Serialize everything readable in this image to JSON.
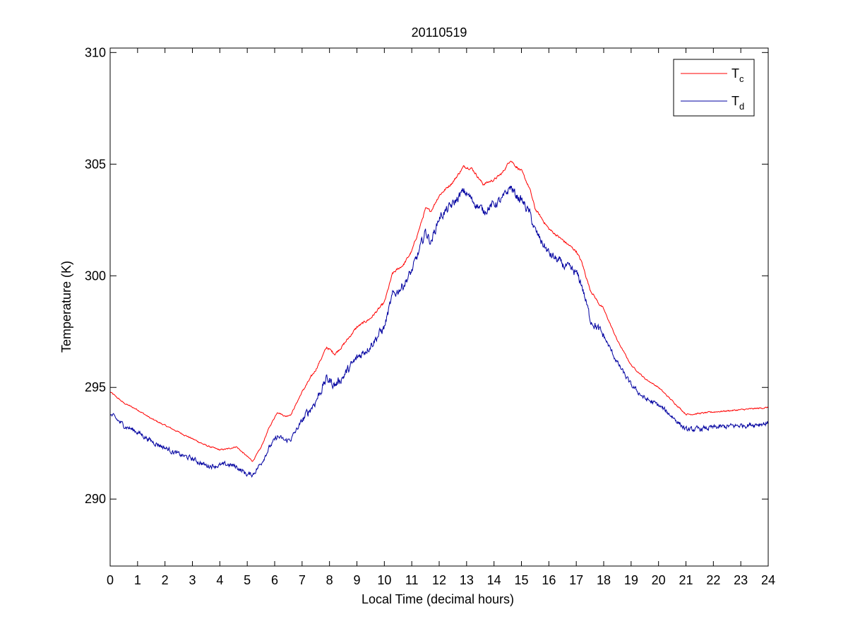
{
  "chart_data": {
    "type": "line",
    "title": "20110519",
    "xlabel": "Local Time (decimal hours)",
    "ylabel": "Temperature (K)",
    "xlim": [
      0,
      24
    ],
    "ylim": [
      287,
      310.2
    ],
    "xticks": [
      "0",
      "1",
      "2",
      "3",
      "4",
      "5",
      "6",
      "7",
      "8",
      "9",
      "10",
      "11",
      "12",
      "13",
      "14",
      "15",
      "16",
      "17",
      "18",
      "19",
      "20",
      "21",
      "22",
      "23",
      "24"
    ],
    "yticks": [
      "290",
      "295",
      "300",
      "305",
      "310"
    ],
    "ytick_values": [
      290,
      295,
      300,
      305,
      310
    ],
    "grid": false,
    "legend_position": "top-right",
    "series": [
      {
        "name": "T",
        "name_subscript": "c",
        "color": "#ff0000",
        "noise": 0.06,
        "x": [
          0,
          0.5,
          1,
          1.5,
          2,
          2.5,
          3,
          3.5,
          4,
          4.3,
          4.6,
          5,
          5.2,
          5.5,
          5.8,
          6.1,
          6.4,
          6.6,
          7,
          7.5,
          7.9,
          8.2,
          8.5,
          9,
          9.5,
          10,
          10.3,
          10.7,
          11,
          11.3,
          11.5,
          11.7,
          12,
          12.5,
          12.9,
          13.2,
          13.6,
          14,
          14.3,
          14.6,
          14.8,
          15,
          15.3,
          15.5,
          16,
          16.5,
          17,
          17.2,
          17.5,
          17.8,
          18,
          18.5,
          19,
          19.5,
          20,
          20.5,
          21,
          21.2,
          22,
          23,
          24
        ],
        "y": [
          294.8,
          294.3,
          294,
          293.6,
          293.3,
          293,
          292.7,
          292.4,
          292.2,
          292.25,
          292.35,
          291.9,
          291.7,
          292.3,
          293.2,
          293.9,
          293.7,
          293.8,
          294.8,
          295.8,
          296.8,
          296.5,
          296.9,
          297.7,
          298.1,
          298.8,
          300.1,
          300.5,
          301.1,
          302.2,
          303.0,
          302.9,
          303.6,
          304.2,
          304.9,
          304.8,
          304.1,
          304.3,
          304.6,
          305.2,
          304.9,
          304.7,
          303.9,
          303.0,
          302.1,
          301.6,
          301.1,
          300.6,
          299.4,
          298.8,
          298.5,
          297.1,
          296.0,
          295.4,
          295.0,
          294.4,
          293.8,
          293.8,
          293.9,
          294.0,
          294.1
        ]
      },
      {
        "name": "T",
        "name_subscript": "d",
        "color": "#0000a0",
        "noise": 0.22,
        "x": [
          0,
          0.5,
          1,
          1.5,
          2,
          2.5,
          3,
          3.5,
          4,
          4.3,
          4.6,
          5,
          5.2,
          5.5,
          5.8,
          6.1,
          6.4,
          6.6,
          7,
          7.5,
          7.9,
          8.2,
          8.5,
          9,
          9.5,
          10,
          10.3,
          10.7,
          11,
          11.3,
          11.5,
          11.7,
          12,
          12.5,
          12.9,
          13.2,
          13.6,
          14,
          14.3,
          14.6,
          14.8,
          15,
          15.3,
          15.5,
          16,
          16.5,
          17,
          17.2,
          17.5,
          17.8,
          18,
          18.5,
          19,
          19.5,
          20,
          20.5,
          21,
          21.2,
          22,
          23,
          24
        ],
        "y": [
          293.8,
          293.3,
          293.0,
          292.6,
          292.3,
          292.0,
          291.8,
          291.5,
          291.5,
          291.55,
          291.45,
          291.1,
          291.1,
          291.6,
          292.3,
          292.8,
          292.6,
          292.7,
          293.5,
          294.4,
          295.4,
          295.1,
          295.5,
          296.3,
          296.9,
          297.7,
          299.1,
          299.6,
          300.2,
          301.2,
          302.0,
          301.5,
          302.6,
          303.2,
          303.8,
          303.4,
          302.9,
          303.2,
          303.4,
          304.0,
          303.6,
          303.4,
          302.8,
          302.0,
          301.0,
          300.5,
          300.1,
          299.6,
          298.1,
          297.6,
          297.3,
          296.1,
          295.1,
          294.5,
          294.2,
          293.7,
          293.1,
          293.1,
          293.2,
          293.3,
          293.4
        ]
      }
    ]
  }
}
